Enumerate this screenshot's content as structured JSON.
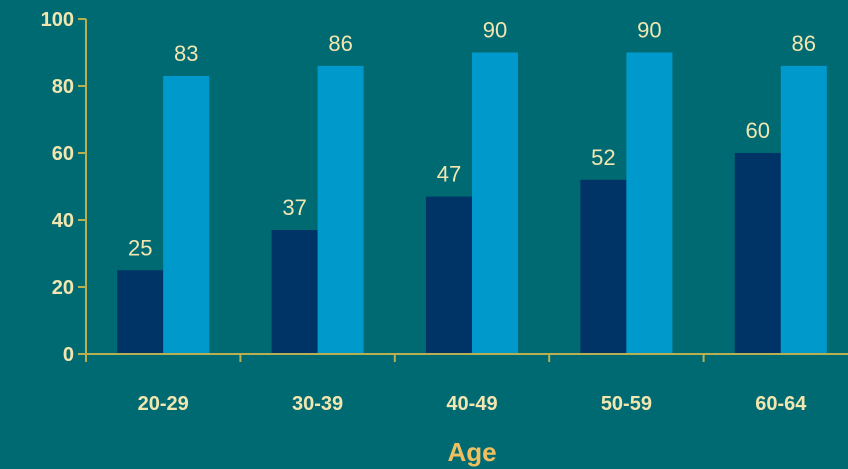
{
  "chart_data": {
    "type": "bar",
    "categories": [
      "20-29",
      "30-39",
      "40-49",
      "50-59",
      "60-64"
    ],
    "series": [
      {
        "values": [
          25,
          37,
          47,
          52,
          60
        ],
        "color": "#003366"
      },
      {
        "values": [
          83,
          86,
          90,
          90,
          86
        ],
        "color": "#0099CC"
      }
    ],
    "xlabel": "Age",
    "ylabel": "",
    "ylim": [
      0,
      100
    ],
    "yticks": [
      0,
      20,
      40,
      60,
      80,
      100
    ],
    "grid": false,
    "legend": "none",
    "colors": {
      "background": "#006A73",
      "axis": "#B8B050",
      "tick_text": "#F2E6B0",
      "data_label_text": "#F2E6B0",
      "axis_title_text": "#F0C060"
    }
  }
}
